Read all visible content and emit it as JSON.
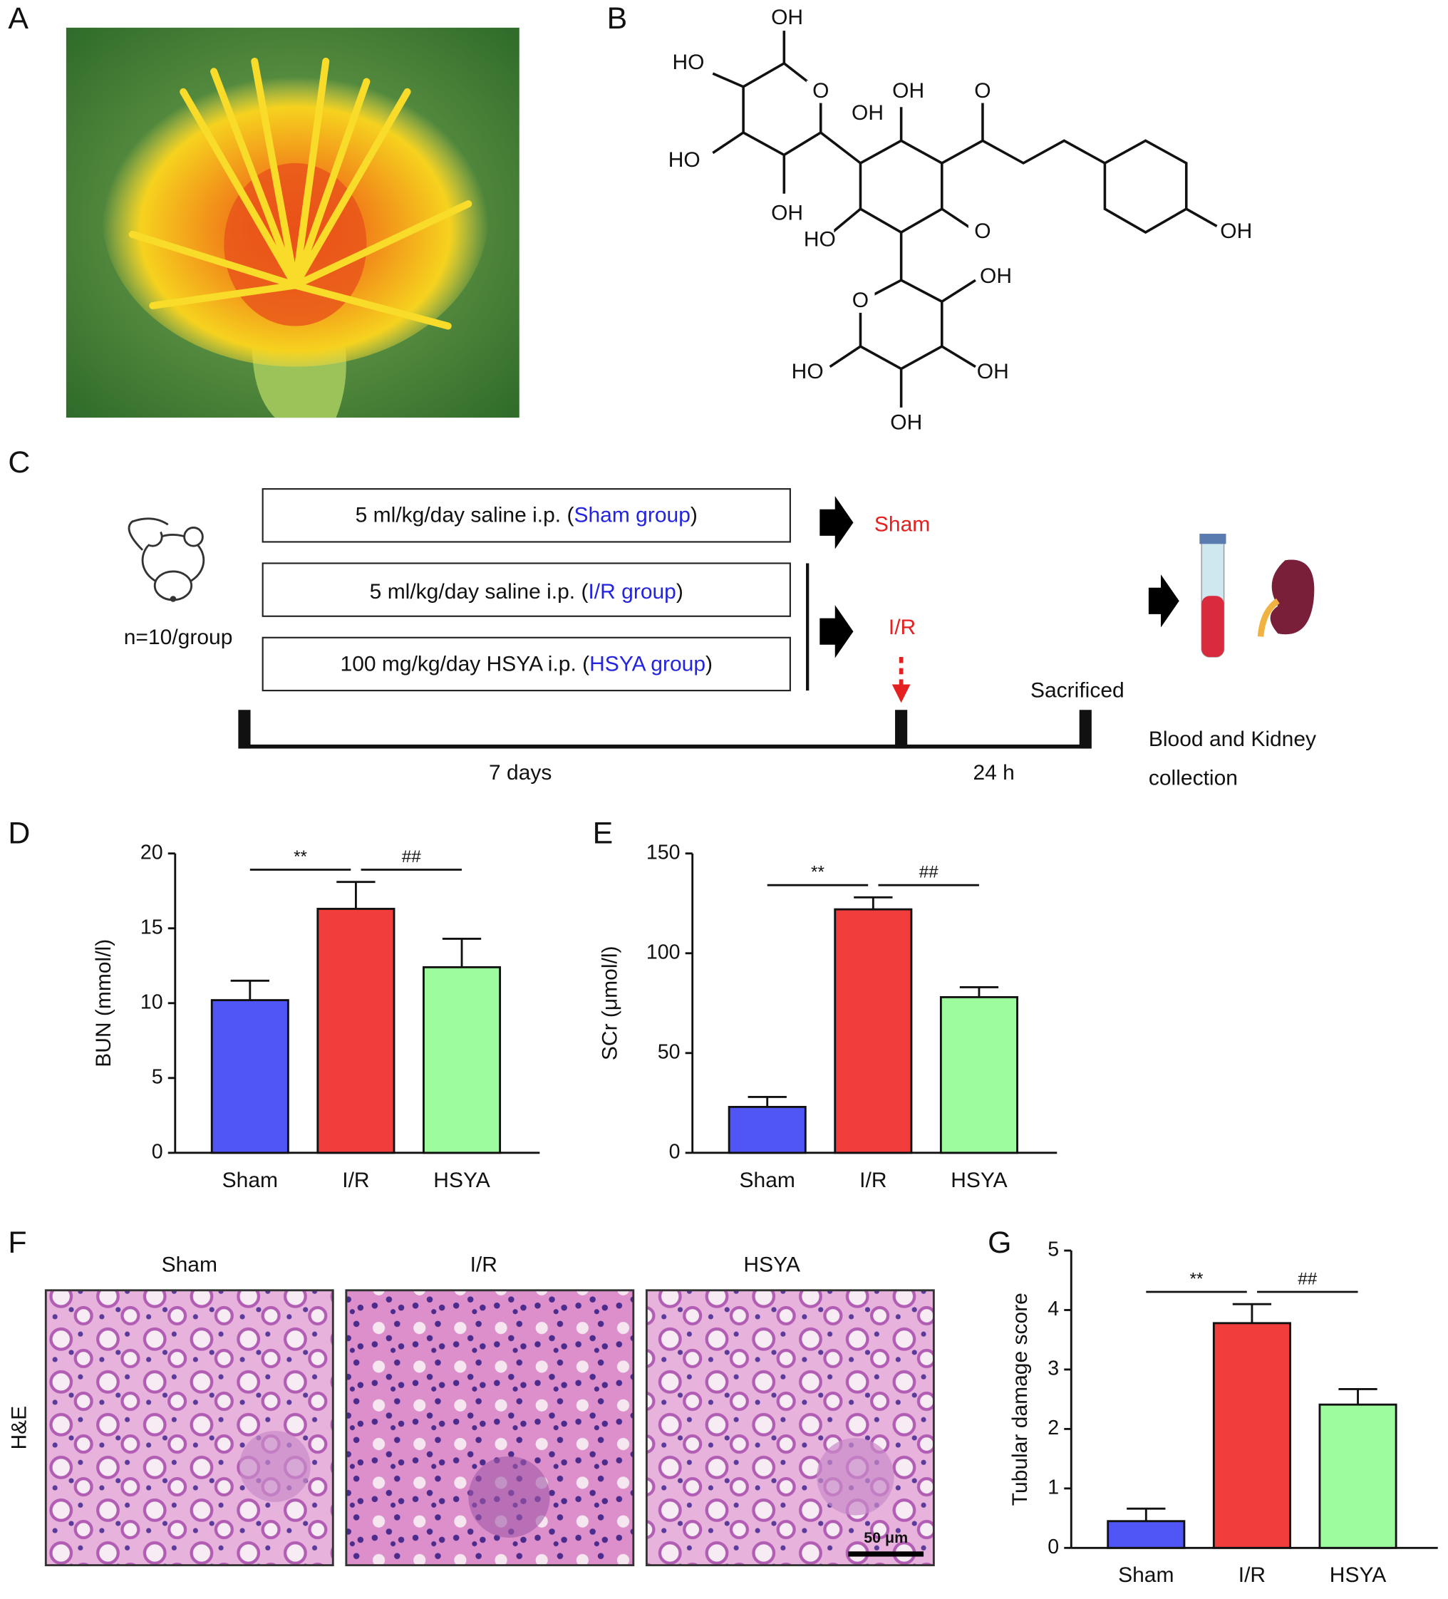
{
  "panels": [
    "A",
    "B",
    "C",
    "D",
    "E",
    "F",
    "G"
  ],
  "structure_labels": [
    "OH",
    "HO",
    "O",
    "OH",
    "OH",
    "O",
    "HO",
    "OH",
    "HO",
    "O",
    "OH",
    "OH",
    "O",
    "HO",
    "OH",
    "OH"
  ],
  "protocol": {
    "rows": [
      {
        "prefix": "5 ml/kg/day saline i.p. (",
        "group": "Sham group",
        "suffix": ")"
      },
      {
        "prefix": "5 ml/kg/day saline i.p. (",
        "group": "I/R group",
        "suffix": ")"
      },
      {
        "prefix": "100 mg/kg/day HSYA i.p. (",
        "group": "HSYA group",
        "suffix": ")"
      }
    ],
    "animals": "n=10/group",
    "outcomes": [
      "Sham",
      "I/R"
    ],
    "sacrificed": "Sacrificed",
    "durations": [
      "7 days",
      "24 h"
    ],
    "collection": [
      "Blood and Kidney",
      "collection"
    ]
  },
  "histology": {
    "groups": [
      "Sham",
      "I/R",
      "HSYA"
    ],
    "stain": "H&E",
    "scale_bar": "50 μm"
  },
  "chart_data": [
    {
      "type": "bar",
      "ylabel": "BUN (mmol/l)",
      "categories": [
        "Sham",
        "I/R",
        "HSYA"
      ],
      "values": [
        10.2,
        16.3,
        12.4
      ],
      "errors": [
        1.3,
        1.8,
        1.9
      ],
      "colors": [
        "#4f56f5",
        "#f23d3d",
        "#9dfc9d"
      ],
      "ylim": [
        0,
        20
      ],
      "yticks": [
        0,
        5,
        10,
        15,
        20
      ],
      "annotations": [
        "**",
        "##"
      ]
    },
    {
      "type": "bar",
      "ylabel": "SCr (μmol/l)",
      "categories": [
        "Sham",
        "I/R",
        "HSYA"
      ],
      "values": [
        23,
        122,
        78
      ],
      "errors": [
        5,
        6,
        5
      ],
      "colors": [
        "#4f56f5",
        "#f23d3d",
        "#9dfc9d"
      ],
      "ylim": [
        0,
        150
      ],
      "yticks": [
        0,
        50,
        100,
        150
      ],
      "annotations": [
        "**",
        "##"
      ]
    },
    {
      "type": "bar",
      "ylabel": "Tubular damage score",
      "categories": [
        "Sham",
        "I/R",
        "HSYA"
      ],
      "values": [
        0.45,
        3.78,
        2.41
      ],
      "errors": [
        0.21,
        0.32,
        0.26
      ],
      "colors": [
        "#4f56f5",
        "#f23d3d",
        "#9dfc9d"
      ],
      "ylim": [
        0,
        5
      ],
      "yticks": [
        0,
        1,
        2,
        3,
        4,
        5
      ],
      "annotations": [
        "**",
        "##"
      ]
    }
  ]
}
